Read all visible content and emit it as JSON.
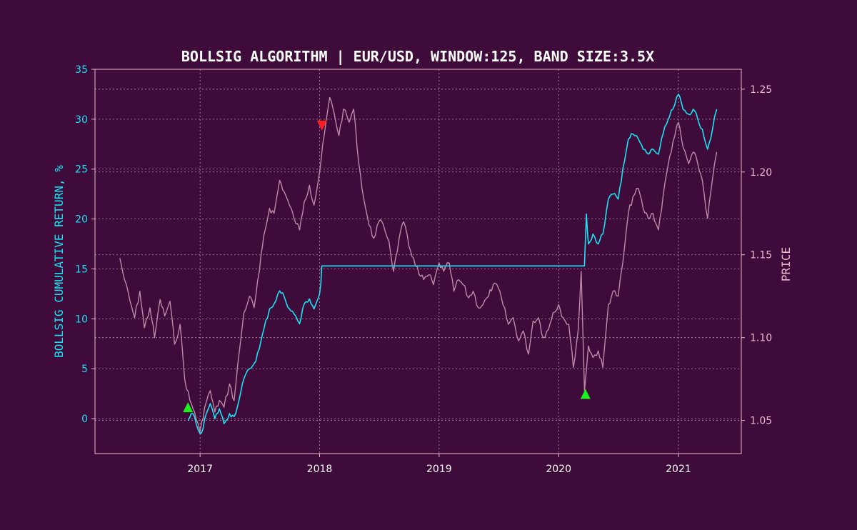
{
  "colors": {
    "background": "#3f0b3b",
    "frame": "#f0b8cc",
    "grid": "#d7b8d4",
    "return_line": "#19e4f2",
    "price_line": "#bf8aa8",
    "buy_marker": "#19f21c",
    "sell_marker": "#ff2020",
    "title_text": "#ffffff",
    "left_axis_text": "#19e4f2",
    "right_axis_text": "#f0b8cc",
    "x_axis_text": "#ffffff"
  },
  "chart_data": {
    "type": "line",
    "title": "BOLLSIG ALGORITHM | EUR/USD, WINDOW:125, BAND SIZE:3.5X",
    "ylabel": "BOLLSIG CUMULATIVE RETURN, %",
    "y2label": "PRICE",
    "xlim": [
      "2016-02-15",
      "2021-07-12"
    ],
    "ylim": [
      -3.5,
      35.0
    ],
    "y2lim": [
      1.03,
      1.262
    ],
    "x_ticks": [
      "2017",
      "2018",
      "2019",
      "2020",
      "2021"
    ],
    "x_tick_dates": [
      "2017-01-01",
      "2018-01-01",
      "2019-01-01",
      "2020-01-01",
      "2021-01-01"
    ],
    "y_ticks": [
      0,
      5,
      10,
      15,
      20,
      25,
      30,
      35
    ],
    "y2_ticks": [
      "1.05",
      "1.10",
      "1.15",
      "1.20",
      "1.25"
    ],
    "grid": true,
    "series": [
      {
        "axis": "right",
        "points": [
          [
            "2016-05-01",
            1.148
          ],
          [
            "2016-05-15",
            1.135
          ],
          [
            "2016-06-01",
            1.122
          ],
          [
            "2016-06-15",
            1.112
          ],
          [
            "2016-07-01",
            1.128
          ],
          [
            "2016-07-15",
            1.106
          ],
          [
            "2016-08-01",
            1.118
          ],
          [
            "2016-08-15",
            1.1
          ],
          [
            "2016-09-01",
            1.123
          ],
          [
            "2016-09-15",
            1.113
          ],
          [
            "2016-10-01",
            1.122
          ],
          [
            "2016-10-15",
            1.096
          ],
          [
            "2016-11-01",
            1.108
          ],
          [
            "2016-11-15",
            1.075
          ],
          [
            "2016-12-01",
            1.062
          ],
          [
            "2016-12-15",
            1.055
          ],
          [
            "2017-01-01",
            1.043
          ],
          [
            "2017-01-15",
            1.058
          ],
          [
            "2017-02-01",
            1.068
          ],
          [
            "2017-02-15",
            1.055
          ],
          [
            "2017-03-01",
            1.062
          ],
          [
            "2017-03-15",
            1.058
          ],
          [
            "2017-04-01",
            1.072
          ],
          [
            "2017-04-15",
            1.062
          ],
          [
            "2017-05-01",
            1.092
          ],
          [
            "2017-05-15",
            1.115
          ],
          [
            "2017-06-01",
            1.125
          ],
          [
            "2017-06-15",
            1.118
          ],
          [
            "2017-07-01",
            1.14
          ],
          [
            "2017-07-15",
            1.162
          ],
          [
            "2017-08-01",
            1.178
          ],
          [
            "2017-08-15",
            1.175
          ],
          [
            "2017-09-01",
            1.195
          ],
          [
            "2017-09-15",
            1.188
          ],
          [
            "2017-10-01",
            1.18
          ],
          [
            "2017-10-15",
            1.172
          ],
          [
            "2017-11-01",
            1.165
          ],
          [
            "2017-11-15",
            1.182
          ],
          [
            "2017-12-01",
            1.192
          ],
          [
            "2017-12-15",
            1.18
          ],
          [
            "2018-01-01",
            1.2
          ],
          [
            "2018-01-15",
            1.222
          ],
          [
            "2018-02-01",
            1.245
          ],
          [
            "2018-02-15",
            1.235
          ],
          [
            "2018-03-01",
            1.222
          ],
          [
            "2018-03-15",
            1.238
          ],
          [
            "2018-04-01",
            1.23
          ],
          [
            "2018-04-15",
            1.238
          ],
          [
            "2018-05-01",
            1.205
          ],
          [
            "2018-05-15",
            1.185
          ],
          [
            "2018-06-01",
            1.168
          ],
          [
            "2018-06-15",
            1.16
          ],
          [
            "2018-07-01",
            1.17
          ],
          [
            "2018-07-15",
            1.168
          ],
          [
            "2018-08-01",
            1.158
          ],
          [
            "2018-08-15",
            1.14
          ],
          [
            "2018-09-01",
            1.16
          ],
          [
            "2018-09-15",
            1.17
          ],
          [
            "2018-10-01",
            1.155
          ],
          [
            "2018-10-15",
            1.148
          ],
          [
            "2018-11-01",
            1.138
          ],
          [
            "2018-11-15",
            1.135
          ],
          [
            "2018-12-01",
            1.138
          ],
          [
            "2018-12-15",
            1.132
          ],
          [
            "2019-01-01",
            1.145
          ],
          [
            "2019-01-15",
            1.14
          ],
          [
            "2019-02-01",
            1.145
          ],
          [
            "2019-02-15",
            1.128
          ],
          [
            "2019-03-01",
            1.135
          ],
          [
            "2019-03-15",
            1.132
          ],
          [
            "2019-04-01",
            1.124
          ],
          [
            "2019-04-15",
            1.128
          ],
          [
            "2019-05-01",
            1.118
          ],
          [
            "2019-05-15",
            1.12
          ],
          [
            "2019-06-01",
            1.125
          ],
          [
            "2019-06-15",
            1.132
          ],
          [
            "2019-07-01",
            1.13
          ],
          [
            "2019-07-15",
            1.12
          ],
          [
            "2019-08-01",
            1.108
          ],
          [
            "2019-08-15",
            1.112
          ],
          [
            "2019-09-01",
            1.098
          ],
          [
            "2019-09-15",
            1.104
          ],
          [
            "2019-10-01",
            1.09
          ],
          [
            "2019-10-15",
            1.11
          ],
          [
            "2019-11-01",
            1.112
          ],
          [
            "2019-11-15",
            1.1
          ],
          [
            "2019-12-01",
            1.105
          ],
          [
            "2019-12-15",
            1.115
          ],
          [
            "2020-01-01",
            1.12
          ],
          [
            "2020-01-15",
            1.112
          ],
          [
            "2020-02-01",
            1.108
          ],
          [
            "2020-02-15",
            1.082
          ],
          [
            "2020-03-01",
            1.105
          ],
          [
            "2020-03-10",
            1.14
          ],
          [
            "2020-03-20",
            1.068
          ],
          [
            "2020-04-01",
            1.095
          ],
          [
            "2020-04-15",
            1.088
          ],
          [
            "2020-05-01",
            1.092
          ],
          [
            "2020-05-15",
            1.082
          ],
          [
            "2020-06-01",
            1.12
          ],
          [
            "2020-06-15",
            1.128
          ],
          [
            "2020-07-01",
            1.125
          ],
          [
            "2020-07-15",
            1.145
          ],
          [
            "2020-08-01",
            1.175
          ],
          [
            "2020-08-15",
            1.185
          ],
          [
            "2020-09-01",
            1.19
          ],
          [
            "2020-09-15",
            1.178
          ],
          [
            "2020-10-01",
            1.172
          ],
          [
            "2020-10-15",
            1.175
          ],
          [
            "2020-11-01",
            1.165
          ],
          [
            "2020-11-15",
            1.185
          ],
          [
            "2020-12-01",
            1.205
          ],
          [
            "2020-12-15",
            1.218
          ],
          [
            "2021-01-01",
            1.23
          ],
          [
            "2021-01-15",
            1.215
          ],
          [
            "2021-02-01",
            1.205
          ],
          [
            "2021-02-15",
            1.212
          ],
          [
            "2021-03-01",
            1.205
          ],
          [
            "2021-03-15",
            1.195
          ],
          [
            "2021-03-31",
            1.172
          ],
          [
            "2021-04-15",
            1.196
          ],
          [
            "2021-04-28",
            1.212
          ]
        ]
      },
      {
        "axis": "left",
        "points": [
          [
            "2016-11-25",
            -0.2
          ],
          [
            "2016-12-10",
            0.5
          ],
          [
            "2016-12-20",
            -0.5
          ],
          [
            "2017-01-01",
            -1.5
          ],
          [
            "2017-01-10",
            -1.0
          ],
          [
            "2017-01-20",
            0.5
          ],
          [
            "2017-02-01",
            1.5
          ],
          [
            "2017-02-15",
            0.0
          ],
          [
            "2017-03-01",
            1.0
          ],
          [
            "2017-03-15",
            -0.5
          ],
          [
            "2017-04-01",
            0.5
          ],
          [
            "2017-04-15",
            0.2
          ],
          [
            "2017-05-01",
            2.0
          ],
          [
            "2017-05-15",
            4.0
          ],
          [
            "2017-06-01",
            5.0
          ],
          [
            "2017-06-15",
            5.5
          ],
          [
            "2017-07-01",
            7.0
          ],
          [
            "2017-07-15",
            9.0
          ],
          [
            "2017-08-01",
            11.0
          ],
          [
            "2017-08-15",
            11.5
          ],
          [
            "2017-09-01",
            12.8
          ],
          [
            "2017-09-15",
            12.2
          ],
          [
            "2017-10-01",
            11.0
          ],
          [
            "2017-10-15",
            10.5
          ],
          [
            "2017-11-01",
            9.5
          ],
          [
            "2017-11-15",
            11.5
          ],
          [
            "2017-12-01",
            12.0
          ],
          [
            "2017-12-15",
            11.0
          ],
          [
            "2018-01-01",
            12.5
          ],
          [
            "2018-01-05",
            13.5
          ],
          [
            "2018-01-08",
            15.3
          ],
          [
            "2018-04-01",
            15.3
          ],
          [
            "2019-06-01",
            15.3
          ],
          [
            "2020-01-01",
            15.3
          ],
          [
            "2020-03-20",
            15.3
          ],
          [
            "2020-03-23",
            18.0
          ],
          [
            "2020-03-26",
            20.5
          ],
          [
            "2020-04-01",
            17.5
          ],
          [
            "2020-04-15",
            18.5
          ],
          [
            "2020-05-01",
            17.5
          ],
          [
            "2020-05-15",
            18.5
          ],
          [
            "2020-06-01",
            22.0
          ],
          [
            "2020-06-15",
            22.5
          ],
          [
            "2020-07-01",
            22.0
          ],
          [
            "2020-07-15",
            25.0
          ],
          [
            "2020-08-01",
            28.0
          ],
          [
            "2020-08-15",
            28.5
          ],
          [
            "2020-09-01",
            28.0
          ],
          [
            "2020-09-15",
            27.0
          ],
          [
            "2020-10-01",
            26.5
          ],
          [
            "2020-10-15",
            27.0
          ],
          [
            "2020-11-01",
            26.5
          ],
          [
            "2020-11-15",
            28.5
          ],
          [
            "2020-12-01",
            30.0
          ],
          [
            "2020-12-15",
            31.0
          ],
          [
            "2021-01-01",
            32.5
          ],
          [
            "2021-01-15",
            31.0
          ],
          [
            "2021-02-01",
            30.5
          ],
          [
            "2021-02-15",
            31.0
          ],
          [
            "2021-03-01",
            30.0
          ],
          [
            "2021-03-15",
            29.0
          ],
          [
            "2021-03-31",
            27.0
          ],
          [
            "2021-04-15",
            29.0
          ],
          [
            "2021-04-28",
            31.0
          ]
        ]
      }
    ],
    "markers": [
      {
        "type": "buy",
        "date": "2016-11-25",
        "price": 1.058
      },
      {
        "type": "sell",
        "date": "2018-01-08",
        "price": 1.228
      },
      {
        "type": "buy",
        "date": "2020-03-23",
        "price": 1.066
      }
    ]
  }
}
